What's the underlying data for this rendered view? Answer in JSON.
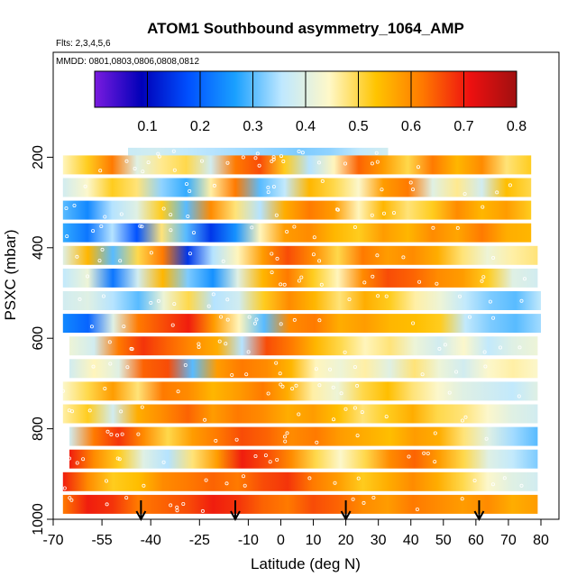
{
  "chart_data": {
    "type": "heatmap",
    "title": "ATOM1 Southbound asymmetry_1064_AMP",
    "flights_note": "Flts: 2,3,4,5,6",
    "dates_note": "MMDD: 0801,0803,0806,0808,0812",
    "xlabel": "Latitude (deg N)",
    "ylabel": "PSXC (mbar)",
    "xlim": [
      -70,
      80
    ],
    "ylim": [
      1000,
      0
    ],
    "x_ticks": [
      -70,
      -55,
      -40,
      -25,
      -10,
      0,
      10,
      20,
      30,
      40,
      50,
      60,
      70,
      80
    ],
    "y_ticks": [
      200,
      400,
      600,
      800,
      1000
    ],
    "colorbar": {
      "range": [
        0.0,
        0.8
      ],
      "ticks": [
        "0.1",
        "0.2",
        "0.3",
        "0.4",
        "0.5",
        "0.6",
        "0.7",
        "0.8"
      ],
      "colors": [
        "#7a1bdf",
        "#0000b8",
        "#0050ff",
        "#1aa0ff",
        "#bfe8ff",
        "#fff8c8",
        "#ffc400",
        "#ff7800",
        "#ee1010",
        "#a01010"
      ]
    },
    "layers": [
      {
        "p": 200,
        "x0": -47,
        "x1": 33,
        "v": [
          0.37,
          0.38,
          0.36,
          0.35,
          0.34,
          0.33,
          0.32,
          0.33,
          0.36,
          0.38
        ]
      },
      {
        "p": 217,
        "x0": -67,
        "x1": 77,
        "v": [
          0.45,
          0.52,
          0.62,
          0.4,
          0.47,
          0.5,
          0.38,
          0.62,
          0.66,
          0.52,
          0.35,
          0.45,
          0.64,
          0.58,
          0.5,
          0.62,
          0.55,
          0.6,
          0.48,
          0.52
        ]
      },
      {
        "p": 267,
        "x0": -67,
        "x1": 77,
        "v": [
          0.38,
          0.44,
          0.52,
          0.48,
          0.33,
          0.28,
          0.46,
          0.62,
          0.3,
          0.36,
          0.55,
          0.5,
          0.44,
          0.58,
          0.62,
          0.4,
          0.47,
          0.38,
          0.54,
          0.5
        ]
      },
      {
        "p": 317,
        "x0": -67,
        "x1": 77,
        "v": [
          0.3,
          0.24,
          0.35,
          0.4,
          0.52,
          0.3,
          0.6,
          0.48,
          0.35,
          0.56,
          0.62,
          0.58,
          0.45,
          0.55,
          0.48,
          0.52,
          0.6,
          0.55,
          0.58,
          0.52
        ]
      },
      {
        "p": 367,
        "x0": -67,
        "x1": 77,
        "v": [
          0.28,
          0.22,
          0.35,
          0.18,
          0.48,
          0.3,
          0.15,
          0.25,
          0.45,
          0.58,
          0.6,
          0.55,
          0.52,
          0.58,
          0.55,
          0.6,
          0.57,
          0.62,
          0.56,
          0.55
        ]
      },
      {
        "p": 417,
        "x0": -67,
        "x1": 79,
        "v": [
          0.4,
          0.55,
          0.3,
          0.5,
          0.62,
          0.15,
          0.35,
          0.45,
          0.58,
          0.66,
          0.6,
          0.5,
          0.62,
          0.58,
          0.6,
          0.56,
          0.48,
          0.42,
          0.46,
          0.48
        ]
      },
      {
        "p": 467,
        "x0": -67,
        "x1": 79,
        "v": [
          0.36,
          0.42,
          0.22,
          0.38,
          0.55,
          0.32,
          0.25,
          0.4,
          0.55,
          0.62,
          0.52,
          0.45,
          0.6,
          0.66,
          0.64,
          0.6,
          0.58,
          0.52,
          0.4,
          0.38
        ]
      },
      {
        "p": 517,
        "x0": -67,
        "x1": 80,
        "v": [
          0.38,
          0.4,
          0.35,
          0.3,
          0.42,
          0.5,
          0.35,
          0.38,
          0.52,
          0.6,
          0.55,
          0.48,
          0.56,
          0.52,
          0.46,
          0.42,
          0.36,
          0.32,
          0.3,
          0.36
        ]
      },
      {
        "p": 567,
        "x0": -67,
        "x1": 80,
        "v": [
          0.24,
          0.2,
          0.4,
          0.62,
          0.66,
          0.7,
          0.58,
          0.45,
          0.3,
          0.6,
          0.62,
          0.56,
          0.58,
          0.55,
          0.54,
          0.52,
          0.36,
          0.32,
          0.3,
          0.34
        ]
      },
      {
        "p": 617,
        "x0": -65,
        "x1": 79,
        "v": [
          0.42,
          0.38,
          0.62,
          0.68,
          0.64,
          0.6,
          0.56,
          0.35,
          0.66,
          0.62,
          0.55,
          0.5,
          0.45,
          0.48,
          0.42,
          0.38,
          0.44,
          0.36,
          0.4,
          0.42
        ]
      },
      {
        "p": 667,
        "x0": -65,
        "x1": 79,
        "v": [
          0.38,
          0.45,
          0.4,
          0.64,
          0.66,
          0.3,
          0.58,
          0.62,
          0.6,
          0.55,
          0.45,
          0.42,
          0.46,
          0.4,
          0.48,
          0.42,
          0.38,
          0.44,
          0.46,
          0.44
        ]
      },
      {
        "p": 717,
        "x0": -67,
        "x1": 79,
        "v": [
          0.44,
          0.5,
          0.58,
          0.48,
          0.62,
          0.6,
          0.55,
          0.58,
          0.62,
          0.56,
          0.46,
          0.42,
          0.5,
          0.54,
          0.48,
          0.44,
          0.4,
          0.38,
          0.36,
          0.4
        ]
      },
      {
        "p": 767,
        "x0": -67,
        "x1": 79,
        "v": [
          0.46,
          0.52,
          0.38,
          0.56,
          0.6,
          0.64,
          0.58,
          0.62,
          0.6,
          0.56,
          0.58,
          0.54,
          0.48,
          0.52,
          0.56,
          0.5,
          0.48,
          0.44,
          0.4,
          0.38
        ]
      },
      {
        "p": 817,
        "x0": -65,
        "x1": 79,
        "v": [
          0.38,
          0.62,
          0.68,
          0.6,
          0.5,
          0.58,
          0.62,
          0.66,
          0.64,
          0.6,
          0.62,
          0.58,
          0.56,
          0.54,
          0.58,
          0.56,
          0.48,
          0.4,
          0.34,
          0.3
        ]
      },
      {
        "p": 867,
        "x0": -65,
        "x1": 79,
        "v": [
          0.7,
          0.6,
          0.52,
          0.4,
          0.35,
          0.48,
          0.58,
          0.7,
          0.66,
          0.6,
          0.5,
          0.44,
          0.5,
          0.6,
          0.64,
          0.58,
          0.5,
          0.4,
          0.36,
          0.32
        ]
      },
      {
        "p": 917,
        "x0": -67,
        "x1": 79,
        "v": [
          0.7,
          0.6,
          0.52,
          0.54,
          0.6,
          0.62,
          0.64,
          0.62,
          0.66,
          0.68,
          0.62,
          0.58,
          0.52,
          0.56,
          0.6,
          0.56,
          0.5,
          0.44,
          0.4,
          0.38
        ]
      },
      {
        "p": 967,
        "x0": -67,
        "x1": 79,
        "v": [
          0.62,
          0.7,
          0.68,
          0.62,
          0.64,
          0.66,
          0.7,
          0.68,
          0.64,
          0.62,
          0.66,
          0.64,
          0.6,
          0.58,
          0.62,
          0.6,
          0.58,
          0.6,
          0.56,
          0.58
        ]
      }
    ],
    "arrows_lat": [
      -43,
      -14,
      20,
      61
    ],
    "points_note": "white sample markers scattered within each layer"
  }
}
